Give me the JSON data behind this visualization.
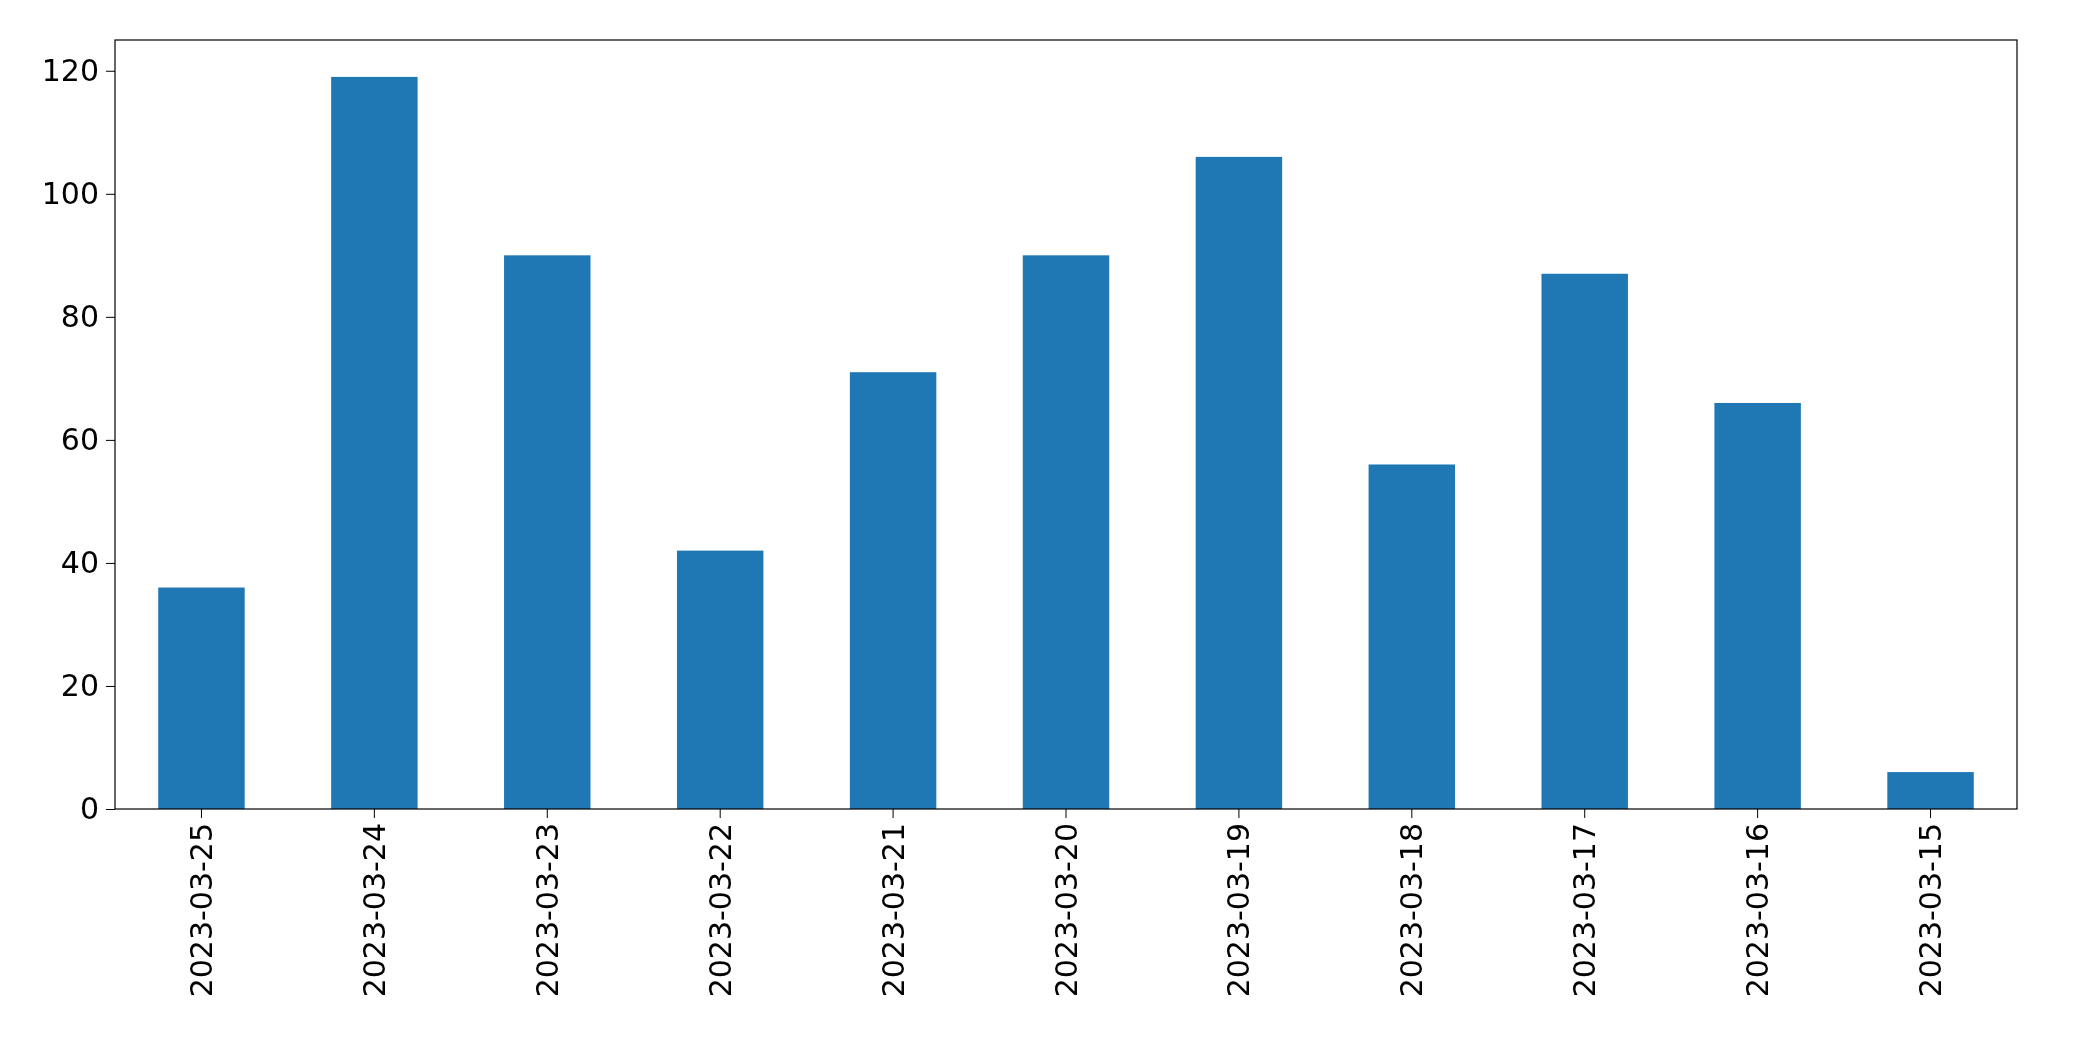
{
  "chart_data": {
    "type": "bar",
    "categories": [
      "2023-03-25",
      "2023-03-24",
      "2023-03-23",
      "2023-03-22",
      "2023-03-21",
      "2023-03-20",
      "2023-03-19",
      "2023-03-18",
      "2023-03-17",
      "2023-03-16",
      "2023-03-15"
    ],
    "values": [
      36,
      119,
      90,
      42,
      71,
      90,
      106,
      56,
      87,
      66,
      6
    ],
    "color": "#1f77b4",
    "ylim": [
      0,
      125
    ],
    "yticks": [
      0,
      20,
      40,
      60,
      80,
      100,
      120
    ],
    "grid": false
  }
}
